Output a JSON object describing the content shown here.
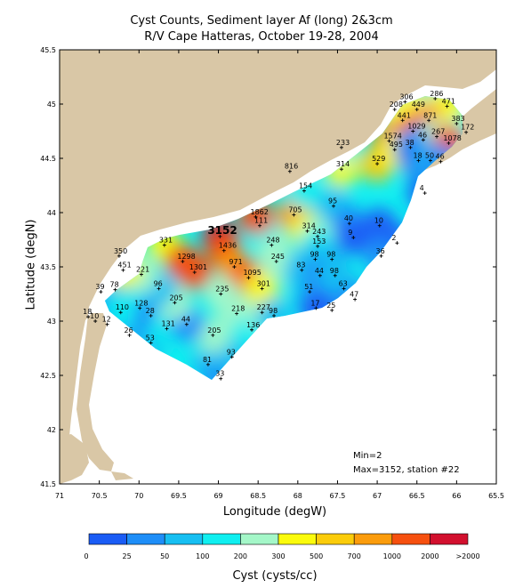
{
  "title": "Cyst Counts, Sediment layer Af (long) 2&3cm",
  "subtitle": "R/V Cape Hatteras, October 19-28, 2004",
  "xlabel": "Longitude (degW)",
  "ylabel": "Latitude (degN)",
  "colorbar_title": "Cyst (cysts/cc)",
  "min_text": "Min=2",
  "max_text": "Max=3152, station #22",
  "highlight_label": "3152",
  "colors": {
    "land": "#d9c7a6",
    "water": "#ffffff",
    "bins": [
      "#1a5cf5",
      "#1e8ef8",
      "#17bff2",
      "#10eff0",
      "#a4f7c8",
      "#fbfb0c",
      "#fbcc0a",
      "#fb9c0c",
      "#f6500f",
      "#d2102e"
    ]
  },
  "x_ticks": [
    "71",
    "70.5",
    "70",
    "69.5",
    "69",
    "68.5",
    "68",
    "67.5",
    "67",
    "66.5",
    "66",
    "65.5"
  ],
  "y_ticks": [
    "45.5",
    "45",
    "44.5",
    "44",
    "43.5",
    "43",
    "42.5",
    "42",
    "41.5"
  ],
  "colorbar_ticks": [
    "0",
    "25",
    "50",
    "100",
    "200",
    "300",
    "500",
    "700",
    "1000",
    "2000",
    ">2000"
  ],
  "chart_data": {
    "type": "heatmap",
    "title": "Cyst Counts, Sediment layer Af (long) 2&3cm",
    "subtitle": "R/V Cape Hatteras, October 19-28, 2004",
    "xlabel": "Longitude (degW)",
    "ylabel": "Latitude (degN)",
    "xlim": [
      71,
      65.5
    ],
    "ylim": [
      41.5,
      45.5
    ],
    "colorbar_bins": [
      0,
      25,
      50,
      100,
      200,
      300,
      500,
      700,
      1000,
      2000
    ],
    "stations": [
      {
        "lon": 70.64,
        "lat": 43.04,
        "value": 18
      },
      {
        "lon": 70.55,
        "lat": 43.0,
        "value": 10
      },
      {
        "lon": 70.4,
        "lat": 42.97,
        "value": 12
      },
      {
        "lon": 70.12,
        "lat": 42.87,
        "value": 26
      },
      {
        "lon": 69.85,
        "lat": 42.8,
        "value": 53
      },
      {
        "lon": 70.48,
        "lat": 43.27,
        "value": 39
      },
      {
        "lon": 70.3,
        "lat": 43.29,
        "value": 78
      },
      {
        "lon": 70.23,
        "lat": 43.08,
        "value": 110
      },
      {
        "lon": 69.99,
        "lat": 43.12,
        "value": 128
      },
      {
        "lon": 69.85,
        "lat": 43.05,
        "value": 28
      },
      {
        "lon": 69.65,
        "lat": 42.93,
        "value": 131
      },
      {
        "lon": 69.13,
        "lat": 42.6,
        "value": 81
      },
      {
        "lon": 68.97,
        "lat": 42.47,
        "value": 33
      },
      {
        "lon": 68.83,
        "lat": 42.67,
        "value": 93
      },
      {
        "lon": 69.07,
        "lat": 42.87,
        "value": 205
      },
      {
        "lon": 69.4,
        "lat": 42.97,
        "value": 44
      },
      {
        "lon": 69.55,
        "lat": 43.17,
        "value": 205
      },
      {
        "lon": 69.75,
        "lat": 43.3,
        "value": 96
      },
      {
        "lon": 69.97,
        "lat": 43.43,
        "value": 221
      },
      {
        "lon": 70.2,
        "lat": 43.47,
        "value": 451
      },
      {
        "lon": 70.25,
        "lat": 43.6,
        "value": 350
      },
      {
        "lon": 69.68,
        "lat": 43.7,
        "value": 331
      },
      {
        "lon": 69.45,
        "lat": 43.55,
        "value": 1298
      },
      {
        "lon": 69.3,
        "lat": 43.45,
        "value": 1301
      },
      {
        "lon": 68.98,
        "lat": 43.78,
        "value": 3152
      },
      {
        "lon": 68.93,
        "lat": 43.65,
        "value": 1436
      },
      {
        "lon": 68.8,
        "lat": 43.5,
        "value": 971
      },
      {
        "lon": 68.62,
        "lat": 43.4,
        "value": 1095
      },
      {
        "lon": 68.97,
        "lat": 43.25,
        "value": 235
      },
      {
        "lon": 68.77,
        "lat": 43.07,
        "value": 218
      },
      {
        "lon": 68.58,
        "lat": 42.92,
        "value": 136
      },
      {
        "lon": 68.45,
        "lat": 43.08,
        "value": 227
      },
      {
        "lon": 68.45,
        "lat": 43.3,
        "value": 301
      },
      {
        "lon": 68.3,
        "lat": 43.05,
        "value": 98
      },
      {
        "lon": 68.27,
        "lat": 43.55,
        "value": 245
      },
      {
        "lon": 68.33,
        "lat": 43.7,
        "value": 248
      },
      {
        "lon": 68.48,
        "lat": 43.88,
        "value": 111
      },
      {
        "lon": 68.53,
        "lat": 43.96,
        "value": 1862
      },
      {
        "lon": 68.05,
        "lat": 43.98,
        "value": 705
      },
      {
        "lon": 67.88,
        "lat": 43.83,
        "value": 314
      },
      {
        "lon": 67.75,
        "lat": 43.78,
        "value": 243
      },
      {
        "lon": 67.75,
        "lat": 43.69,
        "value": 153
      },
      {
        "lon": 67.95,
        "lat": 43.47,
        "value": 83
      },
      {
        "lon": 67.78,
        "lat": 43.57,
        "value": 98
      },
      {
        "lon": 67.57,
        "lat": 43.57,
        "value": 98
      },
      {
        "lon": 67.85,
        "lat": 43.27,
        "value": 51
      },
      {
        "lon": 67.72,
        "lat": 43.42,
        "value": 44
      },
      {
        "lon": 67.53,
        "lat": 43.42,
        "value": 98
      },
      {
        "lon": 67.42,
        "lat": 43.3,
        "value": 63
      },
      {
        "lon": 67.28,
        "lat": 43.2,
        "value": 47
      },
      {
        "lon": 67.57,
        "lat": 43.1,
        "value": 25
      },
      {
        "lon": 67.77,
        "lat": 43.12,
        "value": 17
      },
      {
        "lon": 68.1,
        "lat": 44.38,
        "value": 816
      },
      {
        "lon": 67.92,
        "lat": 44.2,
        "value": 154
      },
      {
        "lon": 67.45,
        "lat": 44.4,
        "value": 314
      },
      {
        "lon": 67.55,
        "lat": 44.06,
        "value": 95
      },
      {
        "lon": 67.35,
        "lat": 43.9,
        "value": 40
      },
      {
        "lon": 67.3,
        "lat": 43.77,
        "value": 9
      },
      {
        "lon": 66.97,
        "lat": 43.88,
        "value": 10
      },
      {
        "lon": 66.75,
        "lat": 43.72,
        "value": 2
      },
      {
        "lon": 66.95,
        "lat": 43.6,
        "value": 36
      },
      {
        "lon": 66.4,
        "lat": 44.18,
        "value": 4
      },
      {
        "lon": 67.45,
        "lat": 44.6,
        "value": 233
      },
      {
        "lon": 67.0,
        "lat": 44.45,
        "value": 529
      },
      {
        "lon": 66.65,
        "lat": 45.02,
        "value": 306
      },
      {
        "lon": 66.78,
        "lat": 44.95,
        "value": 208
      },
      {
        "lon": 66.5,
        "lat": 44.95,
        "value": 449
      },
      {
        "lon": 66.27,
        "lat": 45.05,
        "value": 286
      },
      {
        "lon": 66.12,
        "lat": 44.98,
        "value": 471
      },
      {
        "lon": 66.68,
        "lat": 44.85,
        "value": 441
      },
      {
        "lon": 66.35,
        "lat": 44.85,
        "value": 871
      },
      {
        "lon": 66.0,
        "lat": 44.82,
        "value": 383
      },
      {
        "lon": 65.88,
        "lat": 44.74,
        "value": 172
      },
      {
        "lon": 66.55,
        "lat": 44.75,
        "value": 1029
      },
      {
        "lon": 66.85,
        "lat": 44.66,
        "value": 1574
      },
      {
        "lon": 66.42,
        "lat": 44.67,
        "value": 46
      },
      {
        "lon": 66.25,
        "lat": 44.7,
        "value": 267
      },
      {
        "lon": 66.1,
        "lat": 44.64,
        "value": 1078
      },
      {
        "lon": 66.78,
        "lat": 44.58,
        "value": 495
      },
      {
        "lon": 66.58,
        "lat": 44.6,
        "value": 38
      },
      {
        "lon": 66.48,
        "lat": 44.48,
        "value": 18
      },
      {
        "lon": 66.33,
        "lat": 44.48,
        "value": 50
      },
      {
        "lon": 66.2,
        "lat": 44.47,
        "value": 46
      }
    ],
    "min": 2,
    "max": 3152,
    "max_station": 22
  }
}
